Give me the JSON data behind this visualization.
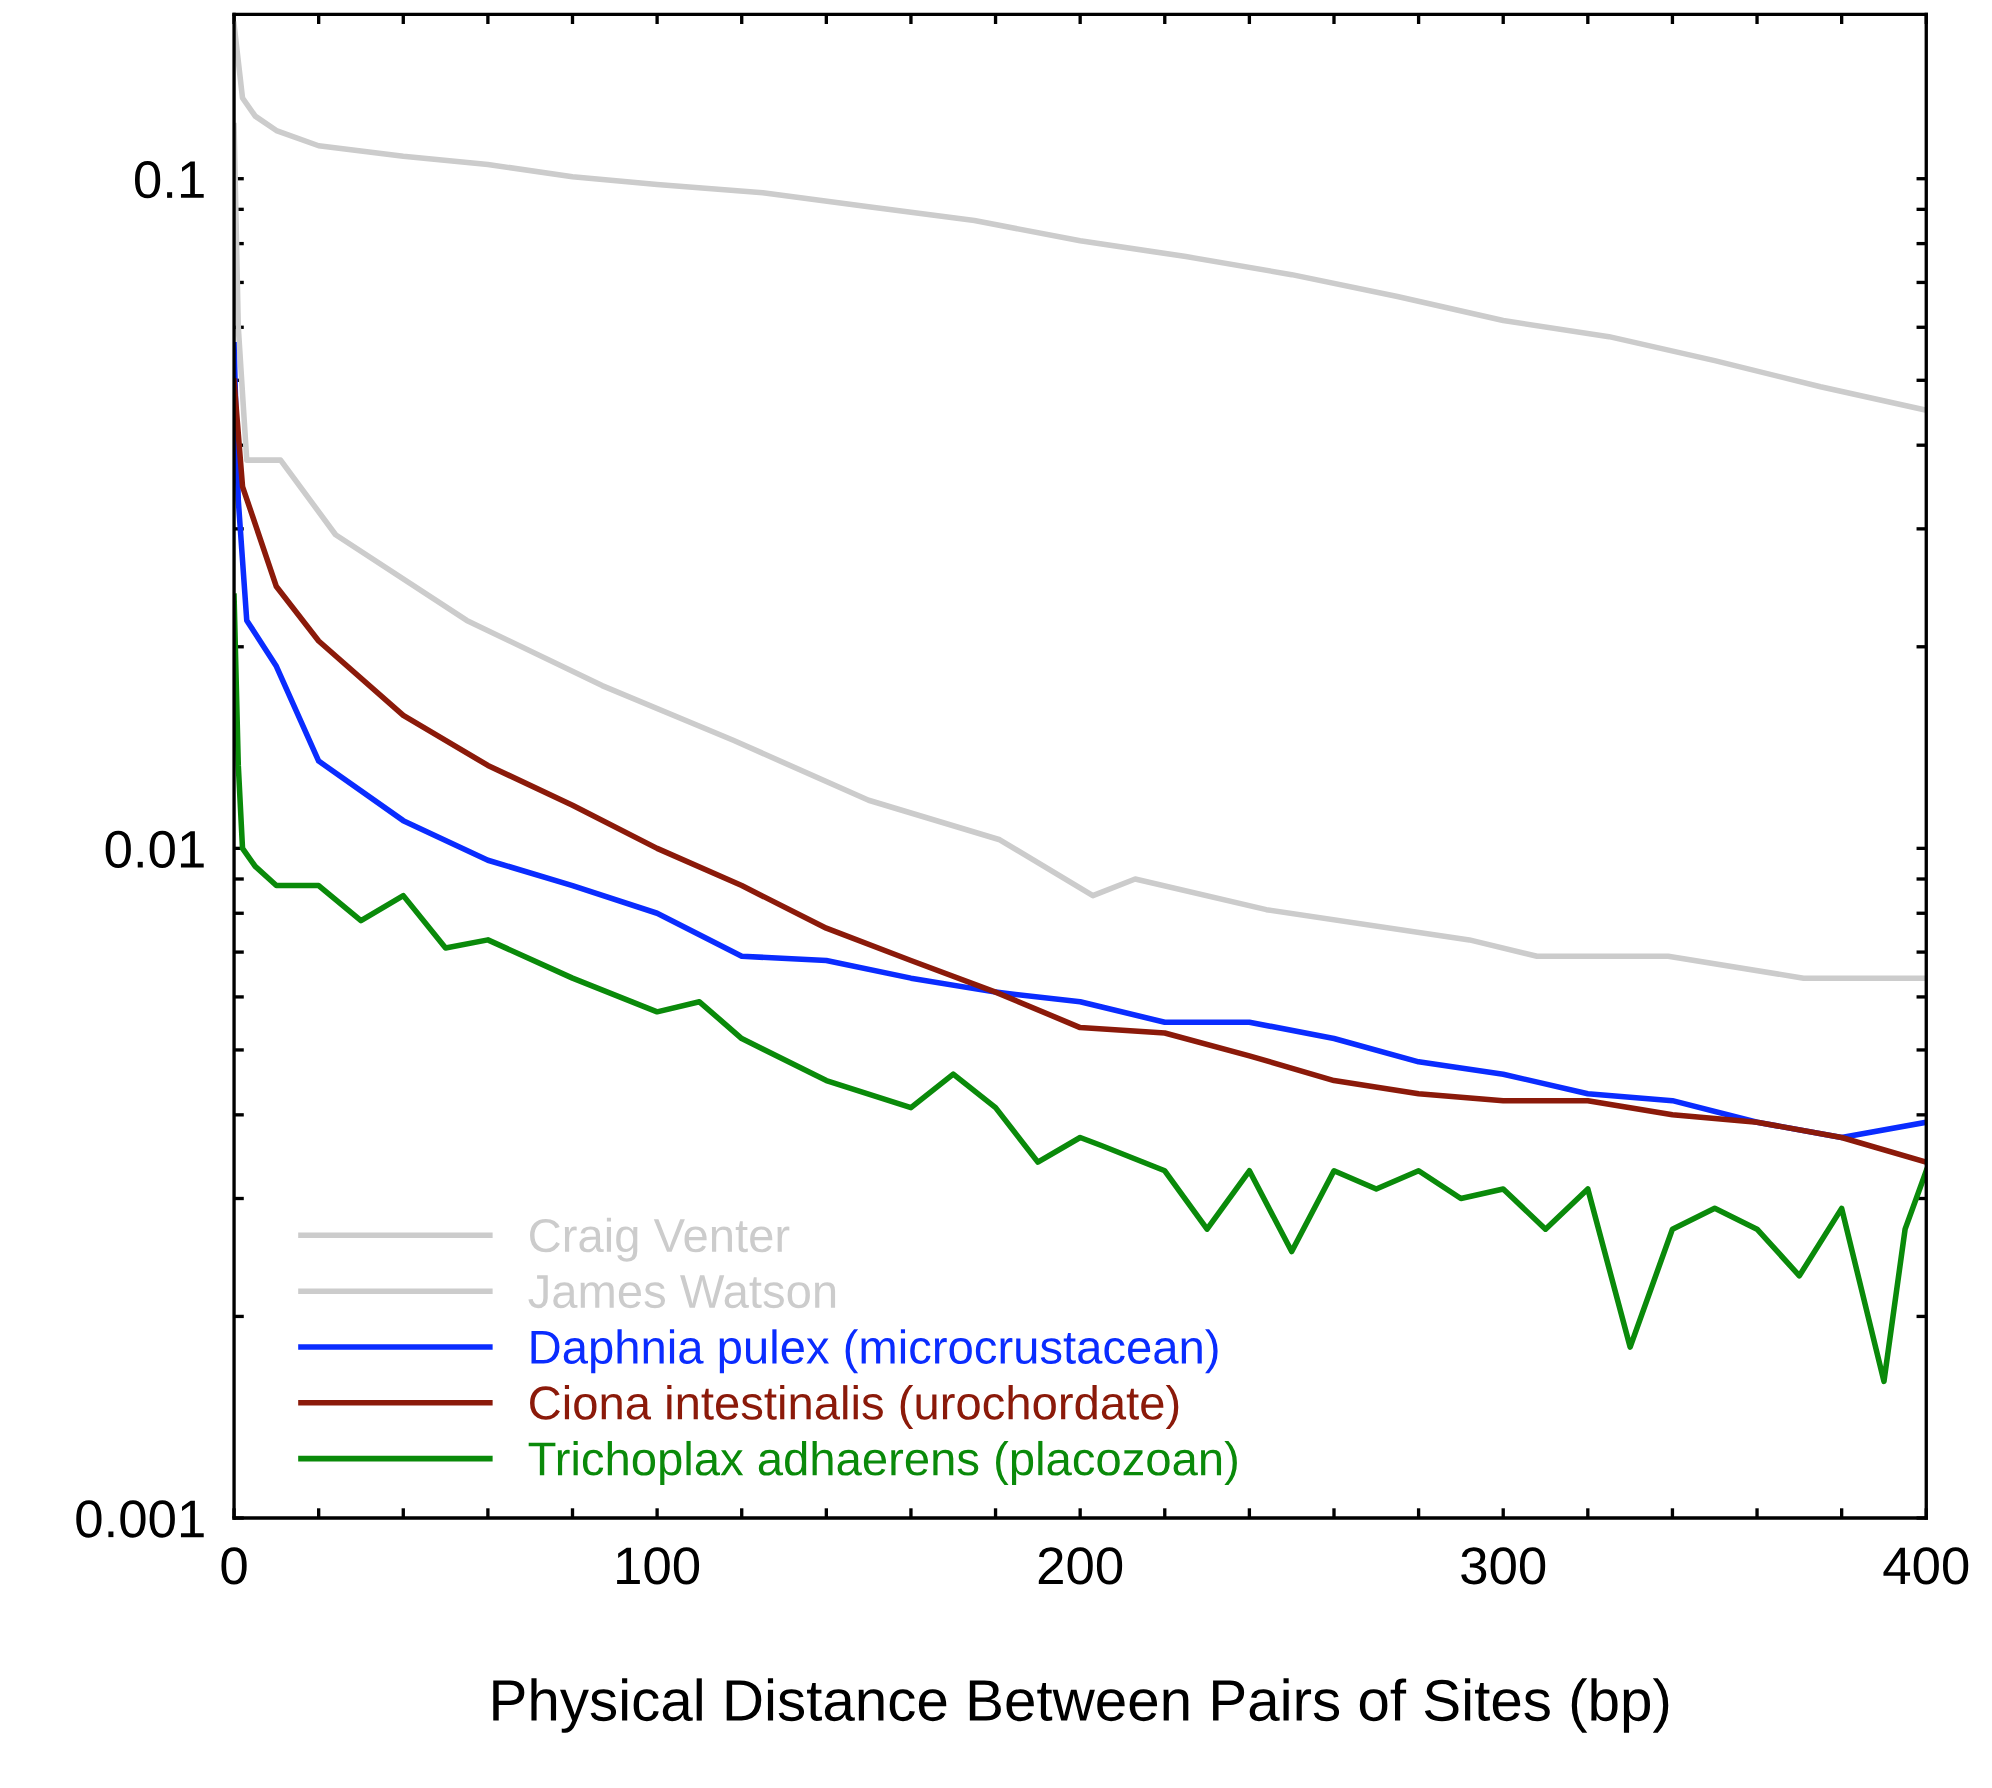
{
  "chart_data": {
    "type": "line",
    "xlabel": "Physical Distance Between Pairs of Sites (bp)",
    "log": "y",
    "grid": false,
    "legend": "bottom left",
    "marker": "none",
    "line_style": "solid",
    "xlim": [
      0,
      400
    ],
    "ylim": [
      0.001,
      0.176
    ],
    "xticks": [
      0,
      {
        "value": 20,
        "label": null
      },
      {
        "value": 40,
        "label": null
      },
      {
        "value": 60,
        "label": null
      },
      {
        "value": 80,
        "label": null
      },
      100,
      {
        "value": 120,
        "label": null
      },
      {
        "value": 140,
        "label": null
      },
      {
        "value": 160,
        "label": null
      },
      {
        "value": 180,
        "label": null
      },
      200,
      {
        "value": 220,
        "label": null
      },
      {
        "value": 240,
        "label": null
      },
      {
        "value": 260,
        "label": null
      },
      {
        "value": 280,
        "label": null
      },
      300,
      {
        "value": 320,
        "label": null
      },
      {
        "value": 340,
        "label": null
      },
      {
        "value": 360,
        "label": null
      },
      {
        "value": 380,
        "label": null
      },
      400
    ],
    "yticks": [
      0.001,
      {
        "value": 0.002,
        "label": null
      },
      {
        "value": 0.003,
        "label": null
      },
      {
        "value": 0.004,
        "label": null
      },
      {
        "value": 0.005,
        "label": null
      },
      {
        "value": 0.006,
        "label": null
      },
      {
        "value": 0.007,
        "label": null
      },
      {
        "value": 0.008,
        "label": null
      },
      {
        "value": 0.009,
        "label": null
      },
      0.01,
      {
        "value": 0.02,
        "label": null
      },
      {
        "value": 0.03,
        "label": null
      },
      {
        "value": 0.04,
        "label": null
      },
      {
        "value": 0.05,
        "label": null
      },
      {
        "value": 0.06,
        "label": null
      },
      {
        "value": 0.07,
        "label": null
      },
      {
        "value": 0.08,
        "label": null
      },
      {
        "value": 0.09,
        "label": null
      },
      0.1
    ],
    "series": [
      {
        "name": "Craig Venter",
        "color": "#cccccc",
        "x": [
          0,
          2,
          5,
          10,
          20,
          40,
          60,
          80,
          100,
          125,
          150,
          175,
          200,
          225,
          250,
          275,
          300,
          325,
          350,
          375,
          400
        ],
        "values": [
          0.17,
          0.132,
          0.124,
          0.118,
          0.112,
          0.108,
          0.105,
          0.1007,
          0.098,
          0.0953,
          0.0908,
          0.0866,
          0.0808,
          0.0765,
          0.0719,
          0.0667,
          0.0614,
          0.0581,
          0.0535,
          0.0489,
          0.0451
        ]
      },
      {
        "name": "James Watson",
        "color": "#cccccc",
        "x": [
          0,
          1,
          3,
          11,
          24,
          55,
          87,
          118,
          150,
          181,
          203,
          213,
          244,
          292,
          308,
          339,
          371,
          400
        ],
        "values": [
          0.12,
          0.06,
          0.038,
          0.038,
          0.0294,
          0.0219,
          0.0175,
          0.0145,
          0.0118,
          0.0103,
          0.0085,
          0.009,
          0.0081,
          0.0073,
          0.0069,
          0.0069,
          0.0064,
          0.0064
        ]
      },
      {
        "name": "Daphnia pulex (microcrustacean)",
        "color": "#0a2cff",
        "x": [
          0,
          1,
          3,
          10,
          20,
          40,
          60,
          80,
          100,
          120,
          140,
          160,
          180,
          200,
          220,
          240,
          260,
          280,
          300,
          320,
          340,
          360,
          380,
          400
        ],
        "values": [
          0.0565,
          0.0331,
          0.0219,
          0.0187,
          0.0135,
          0.011,
          0.0096,
          0.0088,
          0.008,
          0.0069,
          0.0068,
          0.0064,
          0.0061,
          0.0059,
          0.0055,
          0.0055,
          0.0052,
          0.0048,
          0.0046,
          0.0043,
          0.0042,
          0.0039,
          0.0037,
          0.0039
        ]
      },
      {
        "name": "Ciona intestinalis (urochordate)",
        "color": "#8b1a0a",
        "x": [
          0,
          2,
          10,
          20,
          40,
          60,
          80,
          100,
          120,
          140,
          160,
          180,
          200,
          220,
          240,
          260,
          280,
          300,
          320,
          340,
          360,
          380,
          400
        ],
        "values": [
          0.0499,
          0.0347,
          0.0246,
          0.0204,
          0.0158,
          0.0133,
          0.0116,
          0.01,
          0.0088,
          0.0076,
          0.0068,
          0.0061,
          0.0054,
          0.0053,
          0.0049,
          0.0045,
          0.0043,
          0.0042,
          0.0042,
          0.004,
          0.0039,
          0.0037,
          0.0034
        ]
      },
      {
        "name": "Trichoplax adhaerens (placozoan)",
        "color": "#0a8a0a",
        "x": [
          0,
          1,
          2,
          5,
          10,
          20,
          30,
          40,
          50,
          60,
          80,
          100,
          110,
          120,
          140,
          160,
          170,
          180,
          190,
          200,
          205,
          220,
          230,
          240,
          250,
          260,
          270,
          280,
          290,
          300,
          310,
          320,
          330,
          340,
          350,
          360,
          370,
          380,
          390,
          395,
          400
        ],
        "values": [
          0.0238,
          0.0133,
          0.01,
          0.0094,
          0.0088,
          0.0088,
          0.0078,
          0.0085,
          0.0071,
          0.0073,
          0.0064,
          0.0057,
          0.0059,
          0.0052,
          0.0045,
          0.0041,
          0.0046,
          0.0041,
          0.0034,
          0.0037,
          0.0036,
          0.0033,
          0.0027,
          0.0033,
          0.0025,
          0.0033,
          0.0031,
          0.0033,
          0.003,
          0.0031,
          0.0027,
          0.0031,
          0.0018,
          0.0027,
          0.0029,
          0.0027,
          0.0023,
          0.0029,
          0.0016,
          0.0027,
          0.0033
        ]
      }
    ]
  }
}
